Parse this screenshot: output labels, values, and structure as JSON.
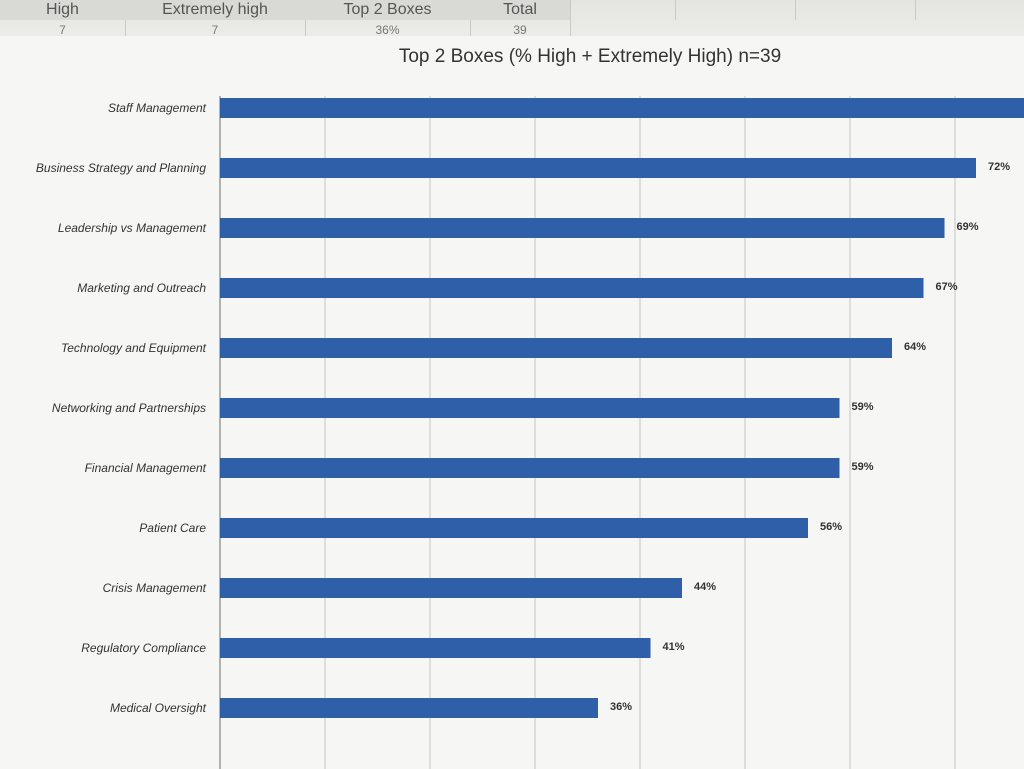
{
  "spreadsheet": {
    "headers": [
      "High",
      "Extremely high",
      "Top 2 Boxes",
      "Total"
    ],
    "row": [
      "7",
      "7",
      "36%",
      "39"
    ]
  },
  "chart_data": {
    "type": "bar",
    "orientation": "horizontal",
    "title": "Top 2 Boxes (% High + Extremely High) n=39",
    "xlabel": "",
    "ylabel": "",
    "xlim": [
      0,
      75
    ],
    "grid": true,
    "legend": "none",
    "bar_color": "#2e5fa8",
    "categories": [
      "Staff Management",
      "Business Strategy and Planning",
      "Leadership vs Management",
      "Marketing and Outreach",
      "Technology and Equipment",
      "Networking and Partnerships",
      "Financial Management",
      "Patient Care",
      "Crisis Management",
      "Regulatory Compliance",
      "Medical Oversight"
    ],
    "values": [
      77,
      72,
      69,
      67,
      64,
      59,
      59,
      56,
      44,
      41,
      36
    ],
    "value_labels": [
      "",
      "72%",
      "69%",
      "67%",
      "64%",
      "59%",
      "59%",
      "56%",
      "44%",
      "41%",
      "36%"
    ]
  }
}
